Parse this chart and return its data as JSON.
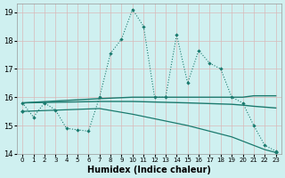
{
  "xlabel": "Humidex (Indice chaleur)",
  "background_color": "#cff0f0",
  "grid_color": "#d8b8b8",
  "line_color": "#1a7a6e",
  "xlim": [
    -0.5,
    23.5
  ],
  "ylim": [
    14,
    19.3
  ],
  "xticks": [
    0,
    1,
    2,
    3,
    4,
    5,
    6,
    7,
    8,
    9,
    10,
    11,
    12,
    13,
    14,
    15,
    16,
    17,
    18,
    19,
    20,
    21,
    22,
    23
  ],
  "yticks": [
    14,
    15,
    16,
    17,
    18,
    19
  ],
  "dotted_x": [
    0,
    1,
    2,
    3,
    4,
    5,
    6,
    7,
    8,
    9,
    10,
    11,
    12,
    13,
    14,
    15,
    16,
    17,
    18,
    19,
    20,
    21,
    22,
    23
  ],
  "dotted_y": [
    15.8,
    15.3,
    15.8,
    15.55,
    14.9,
    14.85,
    14.8,
    16.0,
    17.55,
    18.05,
    19.1,
    18.5,
    16.0,
    16.0,
    18.2,
    16.5,
    17.65,
    17.2,
    17.0,
    16.0,
    15.8,
    15.0,
    14.3,
    14.1
  ],
  "upper_flat_x": [
    0,
    7,
    10,
    15,
    19,
    20,
    21,
    22,
    23
  ],
  "upper_flat_y": [
    15.8,
    15.95,
    16.0,
    16.0,
    16.0,
    16.0,
    16.05,
    16.05,
    16.05
  ],
  "mid_flat_x": [
    0,
    7,
    10,
    15,
    19,
    20,
    21,
    22,
    23
  ],
  "mid_flat_y": [
    15.8,
    15.85,
    15.85,
    15.8,
    15.75,
    15.72,
    15.68,
    15.65,
    15.62
  ],
  "descent_x": [
    0,
    7,
    10,
    15,
    19,
    20,
    21,
    22,
    23
  ],
  "descent_y": [
    15.5,
    15.6,
    15.4,
    15.0,
    14.6,
    14.45,
    14.3,
    14.15,
    14.05
  ]
}
